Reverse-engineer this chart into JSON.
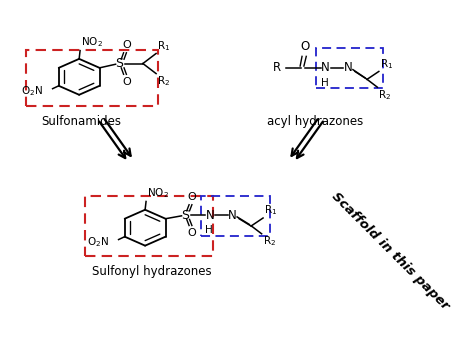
{
  "figsize": [
    4.74,
    3.62
  ],
  "dpi": 100,
  "bg_color": "#ffffff",
  "sulfonamides_label": "Sulfonamides",
  "acyl_hydrazones_label": "acyl hydrazones",
  "sulfonyl_hydrazones_label": "Sulfonyl hydrazones",
  "scaffold_label": "Scaffold in this paper",
  "red_dashed_color": "#cc2222",
  "blue_dashed_color": "#2222cc",
  "text_color": "#000000",
  "xlim": [
    0,
    10
  ],
  "ylim": [
    0,
    10
  ]
}
